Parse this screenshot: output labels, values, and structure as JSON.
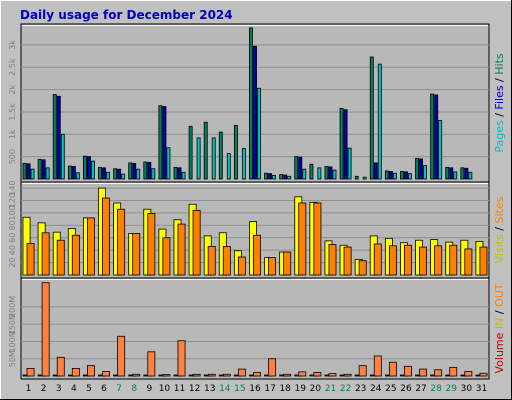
{
  "chart_data": {
    "type": "bar",
    "title": "Daily usage for December 2024",
    "days": [
      "1",
      "2",
      "3",
      "4",
      "5",
      "6",
      "7",
      "8",
      "9",
      "10",
      "11",
      "12",
      "13",
      "14",
      "15",
      "16",
      "17",
      "18",
      "19",
      "20",
      "21",
      "22",
      "23",
      "24",
      "25",
      "26",
      "27",
      "28",
      "29",
      "30",
      "31"
    ],
    "weekend_days": [
      "7",
      "8",
      "14",
      "15",
      "21",
      "22",
      "28",
      "29"
    ],
    "legends": {
      "top": [
        {
          "text": "Pages",
          "color": "#00c0c0"
        },
        {
          "text": " / ",
          "color": "#000000"
        },
        {
          "text": "Files",
          "color": "#0000c0"
        },
        {
          "text": " / ",
          "color": "#000000"
        },
        {
          "text": "Hits",
          "color": "#00805c"
        }
      ],
      "middle": [
        {
          "text": "Visits",
          "color": "#c0c000"
        },
        {
          "text": " / ",
          "color": "#000000"
        },
        {
          "text": "Sites",
          "color": "#ff8000"
        }
      ],
      "bottom": [
        {
          "text": "Volume",
          "color": "#c00000"
        },
        {
          "text": " IN ",
          "color": "#c0c000"
        },
        {
          "text": " / ",
          "color": "#000000"
        },
        {
          "text": "OUT",
          "color": "#ff8000"
        }
      ]
    },
    "panels": [
      {
        "id": "top",
        "ticks": [
          {
            "label": "500",
            "v": 500
          },
          {
            "label": "1k",
            "v": 1000
          },
          {
            "label": "1.5k",
            "v": 1500
          },
          {
            "label": "2k",
            "v": 2000
          },
          {
            "label": "2.5k",
            "v": 2500
          },
          {
            "label": "3k",
            "v": 3000
          }
        ],
        "ymax": 3400,
        "series": [
          {
            "name": "Hits",
            "color": "#00805c",
            "values": [
              350,
              440,
              1890,
              290,
              510,
              260,
              230,
              360,
              380,
              1640,
              260,
              1180,
              1270,
              1050,
              1200,
              3380,
              130,
              100,
              500,
              330,
              280,
              1580,
              60,
              2730,
              180,
              170,
              460,
              1900,
              260,
              250,
              0
            ]
          },
          {
            "name": "Files",
            "color": "#0000c0",
            "values": [
              340,
              430,
              1850,
              280,
              500,
              250,
              220,
              350,
              370,
              1620,
              250,
              0,
              0,
              0,
              0,
              2970,
              120,
              90,
              490,
              0,
              270,
              1550,
              0,
              360,
              170,
              160,
              450,
              1880,
              250,
              240,
              0
            ]
          },
          {
            "name": "Pages",
            "color": "#00c0c0",
            "values": [
              220,
              250,
              1000,
              140,
              400,
              150,
              110,
              220,
              230,
              700,
              150,
              920,
              920,
              570,
              680,
              2030,
              80,
              60,
              220,
              250,
              200,
              690,
              40,
              2570,
              130,
              120,
              300,
              1310,
              160,
              150,
              0
            ]
          }
        ]
      },
      {
        "id": "middle",
        "ticks": [
          {
            "label": "20",
            "v": 20
          },
          {
            "label": "40",
            "v": 40
          },
          {
            "label": "60",
            "v": 60
          },
          {
            "label": "80",
            "v": 80
          },
          {
            "label": "100",
            "v": 100
          },
          {
            "label": "120",
            "v": 120
          },
          {
            "label": "140",
            "v": 140
          }
        ],
        "ymax": 145,
        "series": [
          {
            "name": "Visits",
            "color": "#ffff00",
            "values": [
              93,
              84,
              69,
              75,
              92,
              140,
              116,
              67,
              106,
              74,
              89,
              114,
              63,
              68,
              39,
              86,
              28,
              37,
              126,
              117,
              55,
              48,
              25,
              63,
              59,
              52,
              56,
              57,
              53,
              56,
              54
            ]
          },
          {
            "name": "Sites",
            "color": "#ff8000",
            "values": [
              51,
              68,
              56,
              64,
              92,
              124,
              106,
              67,
              99,
              60,
              82,
              104,
              46,
              46,
              29,
              64,
              28,
              37,
              116,
              116,
              49,
              45,
              23,
              50,
              47,
              48,
              45,
              47,
              48,
              42,
              45
            ]
          }
        ]
      },
      {
        "id": "bottom",
        "ticks": [
          {
            "label": "50M",
            "v": 50
          },
          {
            "label": "100M",
            "v": 100
          },
          {
            "label": "150M",
            "v": 150
          },
          {
            "label": "200M",
            "v": 200
          }
        ],
        "ymax": 275,
        "series": [
          {
            "name": "IN",
            "color": "#c00000",
            "values": [
              1,
              1,
              1,
              1,
              1,
              1,
              1,
              1,
              1,
              1,
              1,
              1,
              1,
              1,
              1,
              1,
              1,
              1,
              1,
              1,
              1,
              1,
              1,
              1,
              1,
              1,
              1,
              1,
              1,
              1,
              1
            ]
          },
          {
            "name": "OUT",
            "color": "#ff8040",
            "values": [
              22,
              270,
              54,
              22,
              30,
              13,
              115,
              5,
              70,
              4,
              102,
              5,
              5,
              5,
              20,
              10,
              50,
              5,
              12,
              10,
              7,
              5,
              30,
              58,
              40,
              28,
              20,
              18,
              25,
              13,
              8
            ]
          }
        ]
      }
    ]
  }
}
